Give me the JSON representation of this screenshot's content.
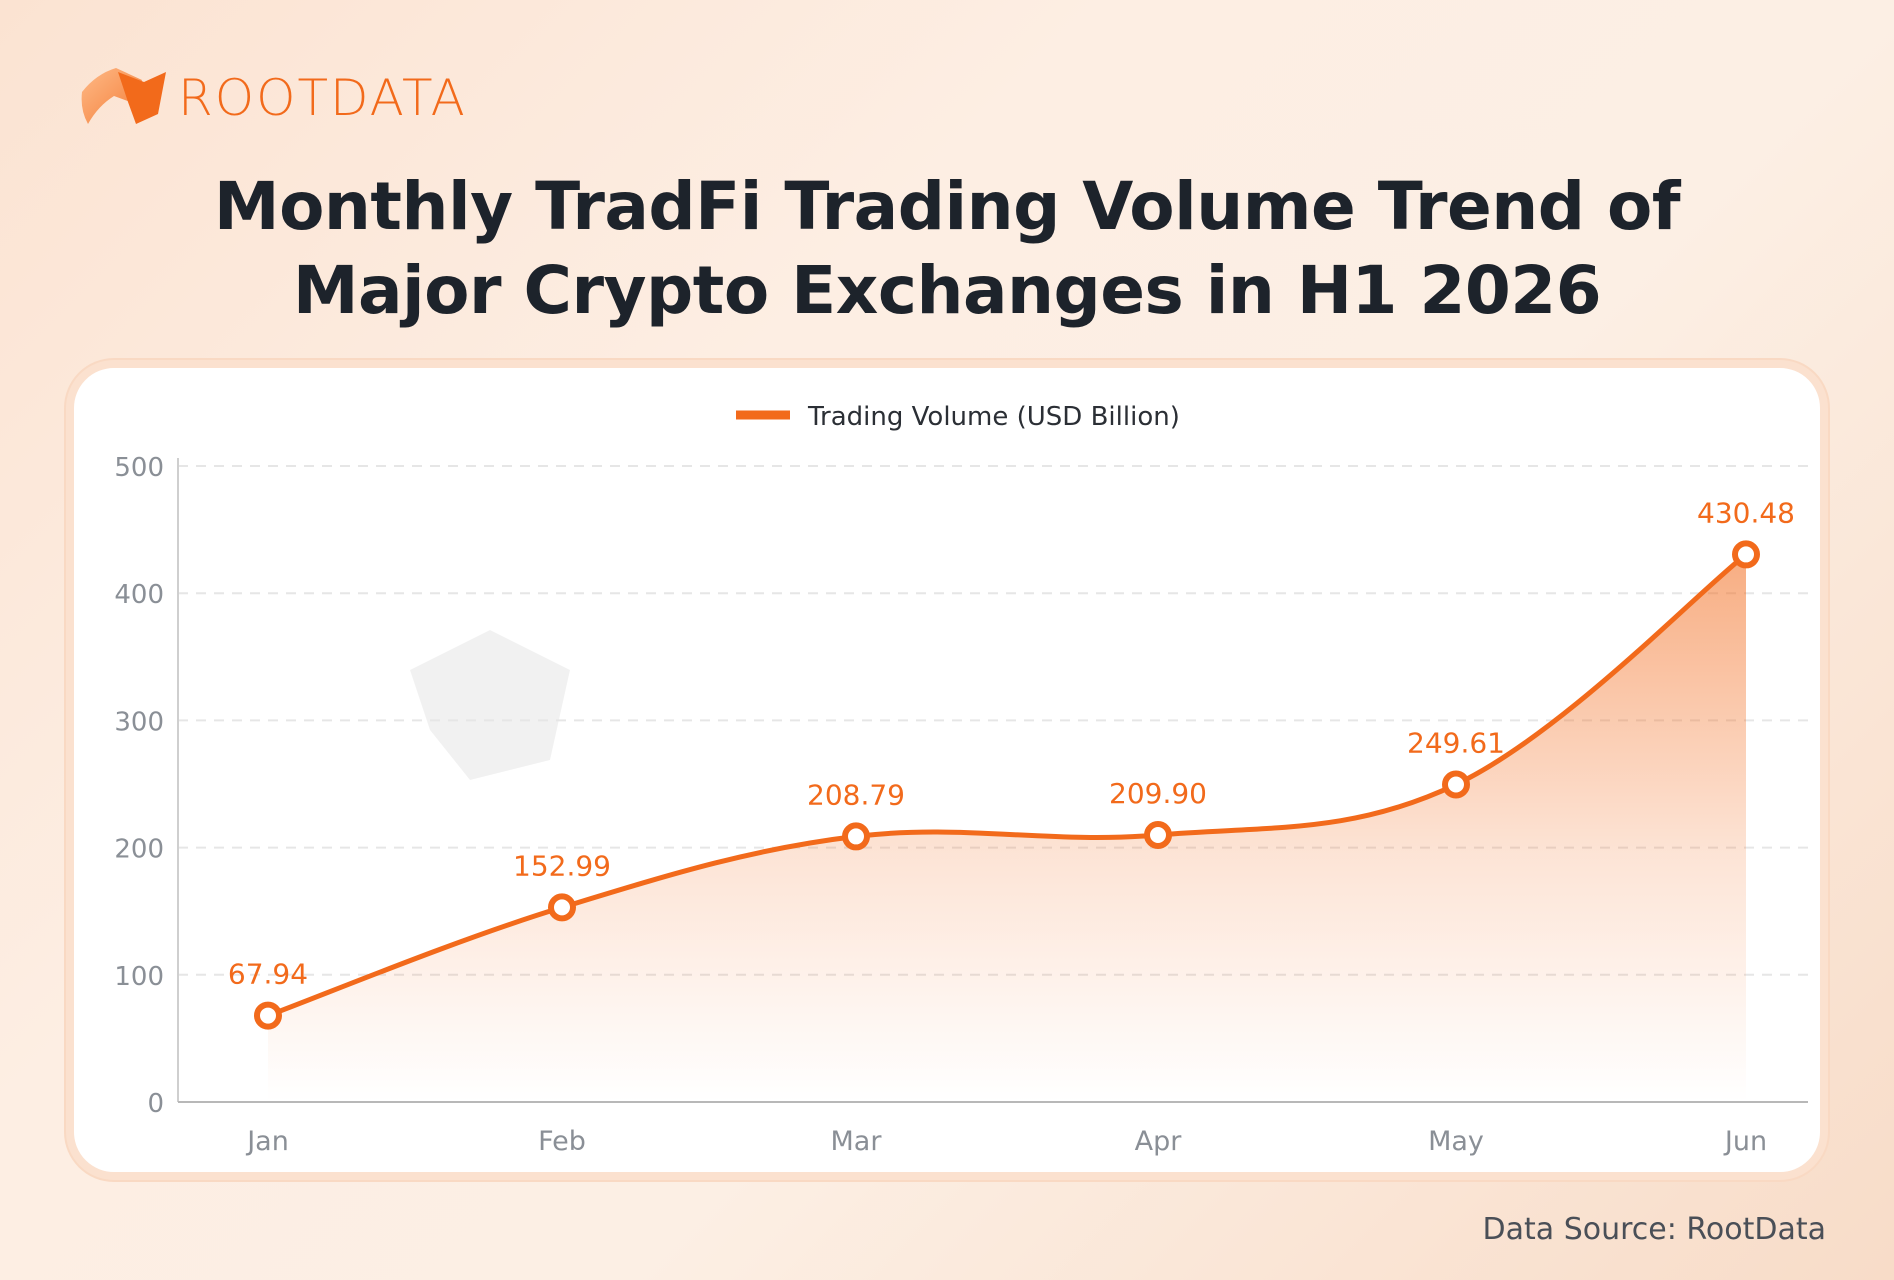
{
  "brand": {
    "name": "ROOTDATA",
    "color": "#f26a1b"
  },
  "title_lines": [
    "Monthly TradFi Trading Volume Trend of",
    "Major Crypto Exchanges in H1 2026"
  ],
  "footer": "Data Source: RootData",
  "chart_data": {
    "type": "line",
    "title": "Monthly TradFi Trading Volume Trend of Major Crypto Exchanges in H1 2026",
    "categories": [
      "Jan",
      "Feb",
      "Mar",
      "Apr",
      "May",
      "Jun"
    ],
    "series": [
      {
        "name": "Trading Volume (USD Billion)",
        "values": [
          67.94,
          152.99,
          208.79,
          209.9,
          249.61,
          430.48
        ],
        "color": "#f26a1b"
      }
    ],
    "data_labels": [
      "67.94",
      "152.99",
      "208.79",
      "209.90",
      "249.61",
      "430.48"
    ],
    "ylim": [
      0,
      500
    ],
    "yticks": [
      0,
      100,
      200,
      300,
      400,
      500
    ],
    "grid": true,
    "legend_position": "top-center",
    "xlabel": "",
    "ylabel": ""
  }
}
